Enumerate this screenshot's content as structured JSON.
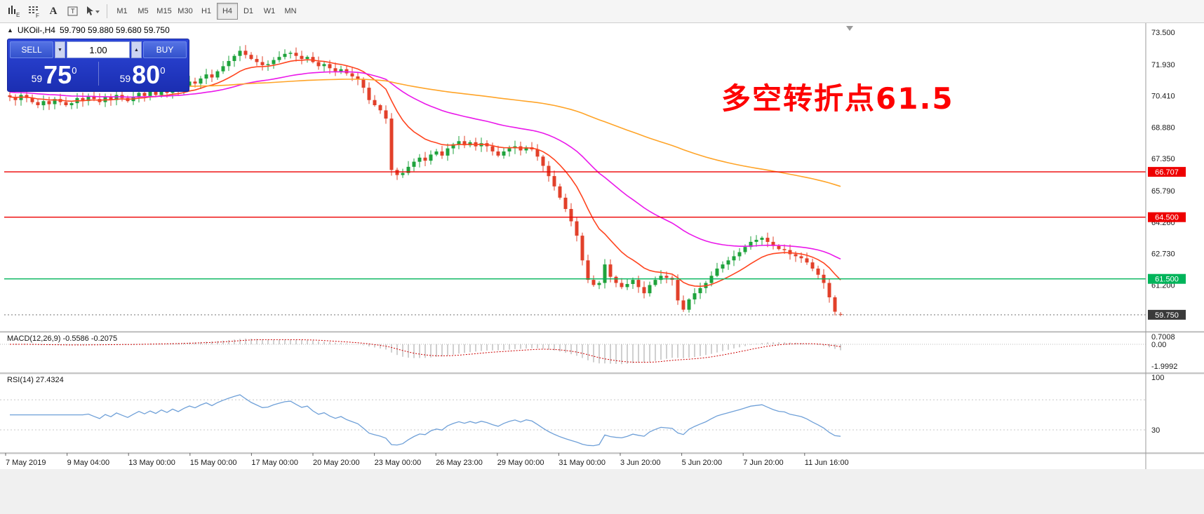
{
  "toolbar": {
    "timeframes": [
      {
        "label": "M1",
        "active": false
      },
      {
        "label": "M5",
        "active": false
      },
      {
        "label": "M15",
        "active": false
      },
      {
        "label": "M30",
        "active": false
      },
      {
        "label": "H1",
        "active": false
      },
      {
        "label": "H4",
        "active": true
      },
      {
        "label": "D1",
        "active": false
      },
      {
        "label": "W1",
        "active": false
      },
      {
        "label": "MN",
        "active": false
      }
    ]
  },
  "quote_bar": {
    "collapse_icon": "▲",
    "symbol": "UKOil-,H4",
    "ohlc": "59.790 59.880 59.680 59.750"
  },
  "trade_panel": {
    "sell_label": "SELL",
    "buy_label": "BUY",
    "volume": "1.00",
    "spinner_down": "▼",
    "spinner_up": "▲",
    "sell_price": {
      "small": "59",
      "big": "75",
      "sup": "0"
    },
    "buy_price": {
      "small": "59",
      "big": "80",
      "sup": "0"
    }
  },
  "annotation": {
    "text": "多空转折点61.5",
    "color": "#FE0000"
  },
  "indicators": {
    "macd_label": "MACD(12,26,9)",
    "macd_values": "-0.5586 -0.2075",
    "rsi_label": "RSI(14)",
    "rsi_value": "27.4324"
  },
  "chart_data": {
    "type": "candlestick",
    "symbol": "UKOil-",
    "timeframe": "H4",
    "last_quote": {
      "open": 59.79,
      "high": 59.88,
      "low": 59.68,
      "close": 59.75
    },
    "colors": {
      "bull": "#1FA33C",
      "bear": "#E2402A"
    },
    "price_axis_ticks": [
      73.5,
      71.93,
      70.41,
      68.88,
      67.35,
      65.79,
      64.26,
      62.73,
      61.2,
      59.68
    ],
    "hlines": [
      {
        "price": 66.707,
        "color": "#EE0000",
        "style": "solid",
        "badge": "66.707",
        "badge_color": "#EE0000"
      },
      {
        "price": 64.5,
        "color": "#EE0000",
        "style": "solid",
        "badge": "64.500",
        "badge_color": "#EE0000"
      },
      {
        "price": 61.5,
        "color": "#00B45A",
        "style": "solid",
        "badge": "61.500",
        "badge_color": "#00B45A"
      },
      {
        "price": 59.75,
        "color": "#9a9a9a",
        "style": "dotted",
        "badge": "59.750",
        "badge_color": "#3a3a3a"
      }
    ],
    "closes": [
      70.35,
      70.2,
      70.45,
      70.3,
      70.1,
      69.95,
      70.15,
      70.0,
      70.25,
      70.1,
      69.95,
      70.05,
      70.3,
      70.15,
      70.4,
      70.25,
      70.1,
      70.35,
      70.2,
      70.45,
      70.3,
      70.15,
      70.35,
      70.55,
      70.4,
      70.6,
      70.45,
      70.7,
      70.55,
      70.8,
      70.65,
      70.9,
      71.1,
      71.0,
      71.25,
      71.45,
      71.3,
      71.6,
      71.85,
      72.1,
      72.35,
      72.6,
      72.4,
      72.2,
      72.05,
      71.9,
      71.95,
      72.15,
      72.3,
      72.45,
      72.5,
      72.35,
      72.2,
      72.3,
      72.05,
      71.85,
      71.95,
      71.75,
      71.6,
      71.7,
      71.5,
      71.35,
      71.2,
      70.8,
      70.2,
      69.95,
      69.7,
      69.3,
      66.8,
      66.55,
      66.65,
      66.95,
      67.2,
      67.4,
      67.25,
      67.55,
      67.7,
      67.5,
      67.85,
      68.05,
      68.2,
      68.0,
      68.15,
      67.95,
      68.1,
      67.95,
      67.7,
      67.5,
      67.7,
      67.85,
      67.95,
      67.75,
      67.9,
      67.8,
      67.45,
      67.0,
      66.5,
      66.0,
      65.45,
      64.9,
      64.3,
      63.6,
      62.4,
      61.45,
      61.2,
      61.3,
      62.2,
      61.6,
      61.3,
      61.1,
      61.25,
      61.45,
      61.1,
      60.8,
      61.2,
      61.45,
      61.65,
      61.55,
      61.45,
      60.45,
      60.0,
      60.5,
      60.8,
      61.05,
      61.3,
      61.65,
      62.0,
      62.2,
      62.4,
      62.6,
      62.8,
      63.05,
      63.3,
      63.4,
      63.5,
      63.3,
      63.1,
      62.95,
      62.9,
      62.7,
      62.6,
      62.5,
      62.3,
      62.0,
      61.7,
      61.3,
      60.6,
      59.9,
      59.75
    ],
    "moving_averages": [
      {
        "name": "ma-fast",
        "period": 13,
        "color": "#FF4520"
      },
      {
        "name": "ma-mid",
        "period": 42,
        "color": "#EA18EA",
        "seed": 70.6
      },
      {
        "name": "ma-slow",
        "period": 150,
        "color": "#FFA428",
        "seed": 71.15
      }
    ],
    "macd": {
      "fast": 12,
      "slow": 26,
      "signal": 9,
      "axis": [
        {
          "text": "0.7008",
          "value": 0.7008
        },
        {
          "text": "0.00",
          "value": 0
        },
        {
          "text": "-1.9992",
          "value": -1.9992
        }
      ]
    },
    "rsi": {
      "period": 14,
      "levels": [
        70,
        30
      ],
      "axis": [
        {
          "text": "100",
          "value": 100
        },
        {
          "text": "30",
          "value": 30
        }
      ]
    },
    "time_labels": [
      "7 May 2019",
      "9 May 04:00",
      "13 May 00:00",
      "15 May 00:00",
      "17 May 00:00",
      "20 May 20:00",
      "23 May 00:00",
      "26 May 23:00",
      "29 May 00:00",
      "31 May 00:00",
      "3 Jun 20:00",
      "5 Jun 20:00",
      "7 Jun 20:00",
      "11 Jun 16:00"
    ]
  }
}
